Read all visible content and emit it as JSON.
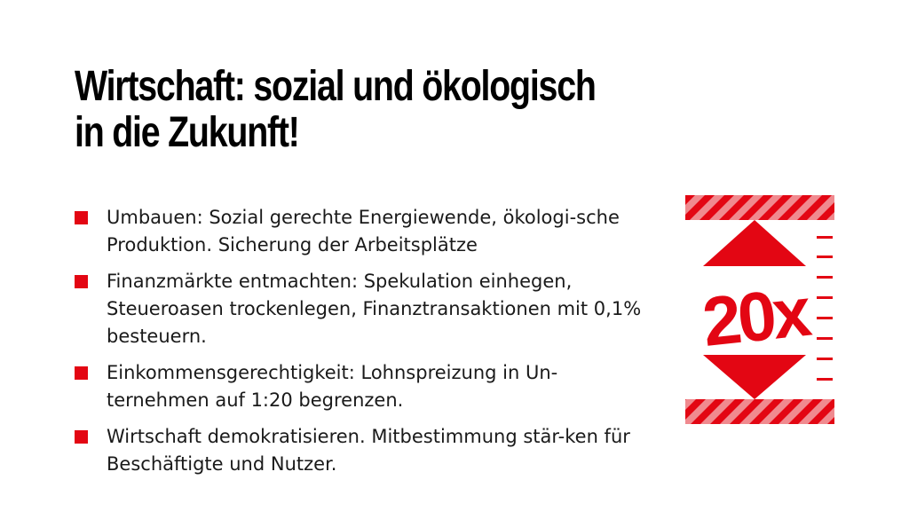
{
  "slide": {
    "title_line1": "Wirtschaft: sozial und ökologisch",
    "title_line2": "in die Zukunft!",
    "accent_color": "#e30613",
    "bullets": [
      {
        "text": "Umbauen: Sozial gerechte Energiewende, ökologi-sche Produktion. Sicherung der Arbeitsplätze"
      },
      {
        "text": "Finanzmärkte entmachten: Spekulation einhegen, Steueroasen trockenlegen, Finanztransaktionen mit 0,1% besteuern."
      },
      {
        "text": "Einkommensgerechtigkeit: Lohnspreizung in Un-ternehmen auf 1:20 begrenzen."
      },
      {
        "text": "Wirtschaft demokratisieren. Mitbestimmung stär-ken für Beschäftigte und Nutzer."
      }
    ]
  },
  "graphic": {
    "label": "20x",
    "icons": [
      "hazard-stripe-band",
      "arrow-up-icon",
      "arrow-down-icon",
      "ruler-tick-marks"
    ]
  }
}
